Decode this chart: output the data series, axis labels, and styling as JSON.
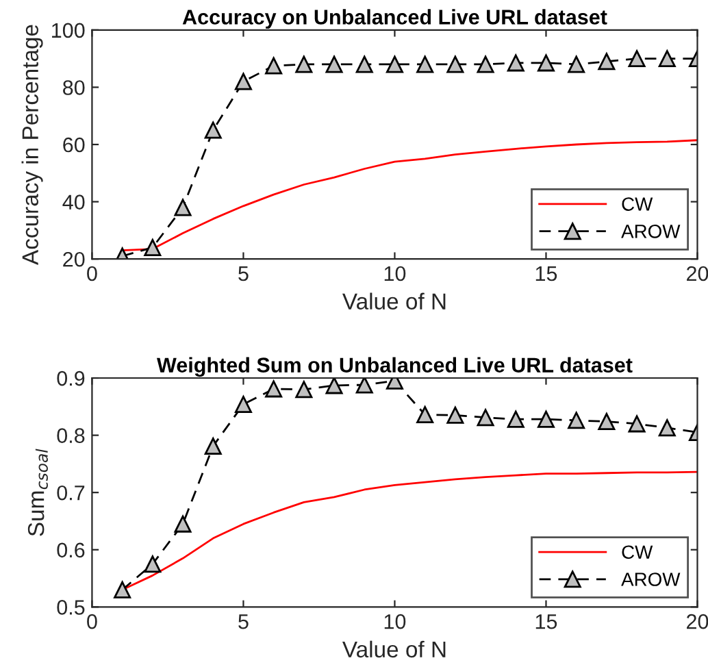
{
  "chart_data": [
    {
      "type": "line",
      "title": "Accuracy on Unbalanced Live URL dataset",
      "xlabel": "Value of N",
      "ylabel": "Accuracy in Percentage",
      "x": [
        1,
        2,
        3,
        4,
        5,
        6,
        7,
        8,
        9,
        10,
        11,
        12,
        13,
        14,
        15,
        16,
        17,
        18,
        19,
        20
      ],
      "xlim": [
        0,
        20
      ],
      "xticks": [
        0,
        5,
        10,
        15,
        20
      ],
      "ylim": [
        20,
        100
      ],
      "yticks": [
        20,
        40,
        60,
        80,
        100
      ],
      "grid": false,
      "legend": "bottom right",
      "series": [
        {
          "name": "CW",
          "color": "#ff0000",
          "line_style": "solid",
          "marker": "none",
          "values": [
            23,
            23.5,
            29,
            34,
            38.5,
            42.5,
            46,
            48.5,
            51.5,
            54,
            55,
            56.5,
            57.5,
            58.5,
            59.3,
            60,
            60.5,
            60.8,
            61,
            61.5
          ]
        },
        {
          "name": "AROW",
          "color": "#000000",
          "line_style": "dashed",
          "marker": "triangle",
          "values": [
            21,
            24,
            38,
            65,
            82,
            87.5,
            88,
            88,
            88,
            88,
            88,
            88,
            88,
            88.5,
            88.5,
            88,
            89,
            90,
            90,
            90
          ]
        }
      ]
    },
    {
      "type": "line",
      "title": "Weighted Sum on Unbalanced Live URL dataset",
      "xlabel": "Value of N",
      "ylabel": "Sum$_{csoal}$",
      "x": [
        1,
        2,
        3,
        4,
        5,
        6,
        7,
        8,
        9,
        10,
        11,
        12,
        13,
        14,
        15,
        16,
        17,
        18,
        19,
        20
      ],
      "xlim": [
        0,
        20
      ],
      "xticks": [
        0,
        5,
        10,
        15,
        20
      ],
      "ylim": [
        0.5,
        0.9
      ],
      "yticks": [
        0.5,
        0.6,
        0.7,
        0.8,
        0.9
      ],
      "grid": false,
      "legend": "bottom right",
      "series": [
        {
          "name": "CW",
          "color": "#ff0000",
          "line_style": "solid",
          "marker": "none",
          "values": [
            0.53,
            0.555,
            0.585,
            0.62,
            0.645,
            0.665,
            0.683,
            0.692,
            0.705,
            0.713,
            0.718,
            0.723,
            0.727,
            0.73,
            0.733,
            0.733,
            0.734,
            0.735,
            0.735,
            0.736
          ]
        },
        {
          "name": "AROW",
          "color": "#000000",
          "line_style": "dashed",
          "marker": "triangle",
          "values": [
            0.53,
            0.575,
            0.645,
            0.781,
            0.854,
            0.881,
            0.88,
            0.887,
            0.888,
            0.895,
            0.836,
            0.835,
            0.831,
            0.828,
            0.828,
            0.826,
            0.824,
            0.82,
            0.813,
            0.805
          ]
        }
      ]
    }
  ]
}
